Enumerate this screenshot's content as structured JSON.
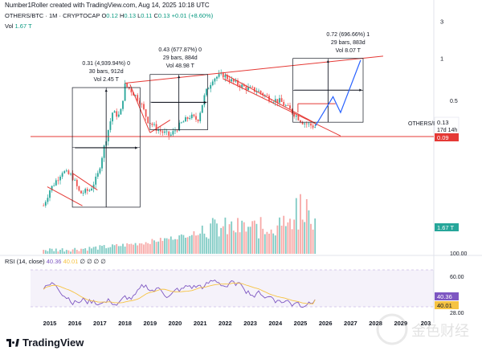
{
  "credit": "Number1Roller created with TradingView.com, Aug 14, 2025 10:18 UTC",
  "header": {
    "symbol": "OTHERS/BTC · 1M · CRYPTOCAP",
    "o_lbl": "O",
    "o": "0.12",
    "h_lbl": "H",
    "h": "0.13",
    "l_lbl": "L",
    "l": "0.11",
    "c_lbl": "C",
    "c": "0.13",
    "chg": "+0.01 (+8.60%)"
  },
  "volume_label": {
    "label": "Vol",
    "value": "1.67 T"
  },
  "rsi_label": {
    "label": "RSI (14, close)",
    "value": "40.36",
    "ma": "40.01",
    "dots": "∅ ∅ ∅ ∅"
  },
  "logo": {
    "text": "TradingView"
  },
  "watermark": {
    "text": "金色财经"
  },
  "colors": {
    "up": "#26a69a",
    "down": "#ef5350",
    "red_line": "#e53935",
    "blue": "#2962ff",
    "rsi": "#7e57c2",
    "rsi_ma": "#f6c343",
    "box": "#131722"
  },
  "chart_data": [
    {
      "type": "candlestick",
      "symbol": "OTHERS/BTC",
      "interval": "1M",
      "scale": "log",
      "ylim": [
        0.01,
        3
      ],
      "y_ticks": [
        {
          "value": 3,
          "label": "3"
        },
        {
          "value": 1,
          "label": "1"
        }
      ],
      "x_ticks": [
        "2015",
        "2016",
        "2017",
        "2018",
        "2019",
        "2020",
        "2021",
        "2022",
        "2023",
        "2024",
        "2025",
        "2026",
        "2027",
        "2028",
        "2029",
        "203"
      ],
      "price_labels": [
        {
          "text": "OTHERS/BTC",
          "value": 0.13
        },
        {
          "text": "0.13",
          "value": 0.13
        },
        {
          "text": "17d 14h",
          "value": 0.13
        },
        {
          "text": "0.09",
          "value": 0.09,
          "color": "#e53935"
        }
      ],
      "annotations": [
        {
          "lines": [
            "0.31 (4,939.94%) 0",
            "30 bars, 912d",
            "Vol 2.45 T"
          ],
          "x_from": 2016,
          "x_to": 2018.5
        },
        {
          "lines": [
            "0.43 (677.87%) 0",
            "29 bars, 884d",
            "Vol 48.98 T"
          ],
          "x_from": 2019,
          "x_to": 2021.4
        },
        {
          "lines": [
            "0.72 (696.66%) 1",
            "29 bars, 883d",
            "Vol 8.07 T"
          ],
          "x_from": 2025.7,
          "x_to": 2028.1
        }
      ],
      "horizontal_line": {
        "value": 0.09,
        "color": "#e53935"
      },
      "ohlc_monthly_approx": "rendered from generated monthly series"
    },
    {
      "type": "bar",
      "name": "Volume",
      "last_value_label": "1.67 T"
    },
    {
      "type": "line",
      "name": "RSI (14, close)",
      "ylim": [
        20,
        80
      ],
      "y_ticks": [
        {
          "value": 60,
          "label": "60.00"
        },
        {
          "value": 28,
          "label": "28.00"
        }
      ],
      "last_values": [
        {
          "label": "40.36",
          "color": "#7e57c2"
        },
        {
          "label": "40.01",
          "color": "#f6c343"
        }
      ]
    }
  ]
}
